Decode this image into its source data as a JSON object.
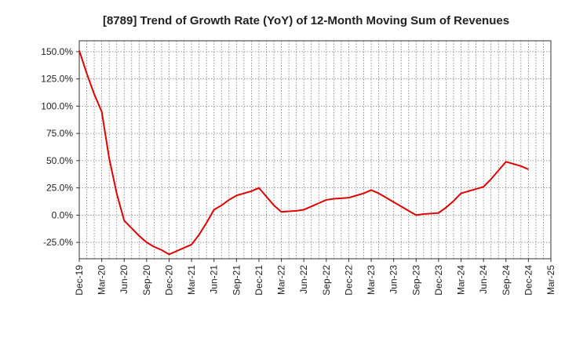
{
  "chart_data": {
    "type": "line",
    "title": "[8789]  Trend of Growth Rate (YoY) of 12-Month Moving Sum of Revenues",
    "xlabel": "",
    "ylabel": "",
    "x_ticks": [
      "Dec-19",
      "Mar-20",
      "Jun-20",
      "Sep-20",
      "Dec-20",
      "Mar-21",
      "Jun-21",
      "Sep-21",
      "Dec-21",
      "Mar-22",
      "Jun-22",
      "Sep-22",
      "Dec-22",
      "Mar-23",
      "Jun-23",
      "Sep-23",
      "Dec-23",
      "Mar-24",
      "Jun-24",
      "Sep-24",
      "Dec-24",
      "Mar-25"
    ],
    "y_ticks": [
      "150.0%",
      "125.0%",
      "100.0%",
      "75.0%",
      "50.0%",
      "25.0%",
      "0.0%",
      "-25.0%"
    ],
    "y_tick_values": [
      150,
      125,
      100,
      75,
      50,
      25,
      0,
      -25
    ],
    "ylim": [
      -40,
      160
    ],
    "x_range": [
      "Dec-19",
      "Mar-25"
    ],
    "grid": true,
    "line_color": "#e00000",
    "series": [
      {
        "x": [
          "Dec-19",
          "Jan-20",
          "Feb-20",
          "Mar-20",
          "Apr-20",
          "May-20",
          "Jun-20",
          "Jul-20",
          "Aug-20",
          "Sep-20",
          "Oct-20",
          "Nov-20",
          "Dec-20",
          "Jan-21",
          "Feb-21",
          "Mar-21",
          "Apr-21",
          "May-21",
          "Jun-21",
          "Jul-21",
          "Aug-21",
          "Sep-21",
          "Oct-21",
          "Nov-21",
          "Dec-21",
          "Jan-22",
          "Feb-22",
          "Mar-22",
          "Apr-22",
          "May-22",
          "Jun-22",
          "Jul-22",
          "Aug-22",
          "Sep-22",
          "Oct-22",
          "Nov-22",
          "Dec-22",
          "Jan-23",
          "Feb-23",
          "Mar-23",
          "Apr-23",
          "May-23",
          "Jun-23",
          "Jul-23",
          "Aug-23",
          "Sep-23",
          "Oct-23",
          "Nov-23",
          "Dec-23",
          "Jan-24",
          "Feb-24",
          "Mar-24",
          "Apr-24",
          "May-24",
          "Jun-24",
          "Jul-24",
          "Aug-24",
          "Sep-24",
          "Oct-24",
          "Nov-24",
          "Dec-24"
        ],
        "values": [
          151,
          130,
          111,
          95,
          52,
          20,
          -5,
          -12,
          -19,
          -25,
          -29,
          -32,
          -36,
          -33,
          -30,
          -27,
          -18,
          -7,
          5,
          9,
          14,
          18,
          20,
          22,
          25,
          17,
          9,
          3,
          3.5,
          4,
          5,
          8,
          11,
          14,
          15,
          15.5,
          16,
          18,
          20,
          23,
          20,
          16,
          12,
          8,
          4,
          0,
          1,
          1.5,
          2,
          7,
          13,
          20,
          22,
          24,
          26,
          33,
          41,
          49,
          47,
          45,
          42
        ]
      }
    ]
  }
}
